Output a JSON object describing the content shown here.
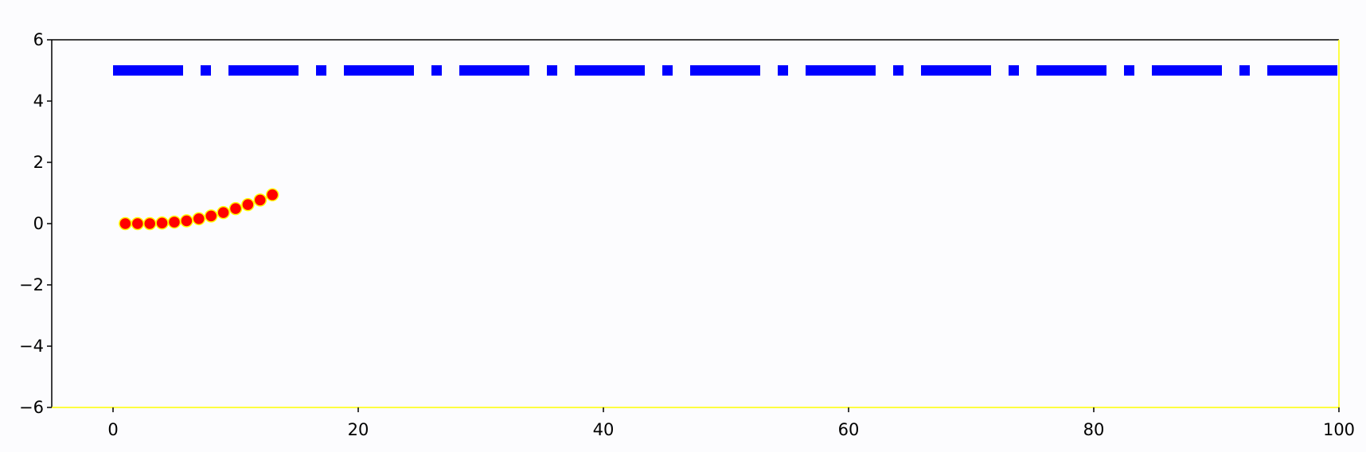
{
  "chart_data": {
    "type": "line",
    "title": "",
    "xlabel": "",
    "ylabel": "",
    "xlim": [
      -5,
      100
    ],
    "ylim": [
      -6,
      6
    ],
    "x_ticks": [
      {
        "value": 0,
        "label": "0"
      },
      {
        "value": 20,
        "label": "20"
      },
      {
        "value": 40,
        "label": "40"
      },
      {
        "value": 60,
        "label": "60"
      },
      {
        "value": 80,
        "label": "80"
      },
      {
        "value": 100,
        "label": "100"
      }
    ],
    "y_ticks": [
      {
        "value": -6,
        "label": "−6"
      },
      {
        "value": -4,
        "label": "−4"
      },
      {
        "value": -2,
        "label": "−2"
      },
      {
        "value": 0,
        "label": "0"
      },
      {
        "value": 2,
        "label": "2"
      },
      {
        "value": 4,
        "label": "4"
      },
      {
        "value": 6,
        "label": "6"
      }
    ],
    "grid": false,
    "background_color": "#fcfcfe",
    "series": [
      {
        "kind": "dashdot-line",
        "color": "#0000ff",
        "x": [
          0,
          100
        ],
        "y": [
          5,
          5
        ]
      },
      {
        "kind": "markers",
        "color": "#ff0000",
        "edge_color": "#ffff00",
        "x": [
          1,
          2,
          3,
          4,
          5,
          6,
          7,
          8,
          9,
          10,
          11,
          12,
          13
        ],
        "y": [
          0.0,
          0.0,
          0.0,
          0.02,
          0.05,
          0.09,
          0.16,
          0.25,
          0.36,
          0.49,
          0.62,
          0.77,
          0.94
        ]
      }
    ]
  }
}
